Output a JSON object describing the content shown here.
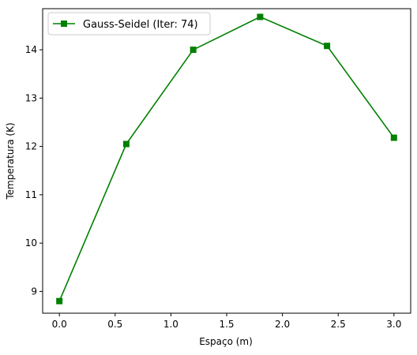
{
  "chart_data": {
    "type": "line",
    "xlabel": "Espaço (m)",
    "ylabel": "Temperatura (K)",
    "xlim": [
      -0.15,
      3.15
    ],
    "ylim": [
      8.55,
      14.85
    ],
    "x_ticks": [
      0.0,
      0.5,
      1.0,
      1.5,
      2.0,
      2.5,
      3.0
    ],
    "x_tick_labels": [
      "0.0",
      "0.5",
      "1.0",
      "1.5",
      "2.0",
      "2.5",
      "3.0"
    ],
    "y_ticks": [
      9,
      10,
      11,
      12,
      13,
      14
    ],
    "y_tick_labels": [
      "9",
      "10",
      "11",
      "12",
      "13",
      "14"
    ],
    "grid": false,
    "legend_position": "top-left",
    "series": [
      {
        "name": "Gauss-Seidel (Iter: 74)",
        "color": "#008000",
        "marker": "square",
        "x": [
          0.0,
          0.6,
          1.2,
          1.8,
          2.4,
          3.0
        ],
        "y": [
          8.8,
          12.05,
          14.0,
          14.68,
          14.08,
          12.18
        ]
      }
    ]
  }
}
